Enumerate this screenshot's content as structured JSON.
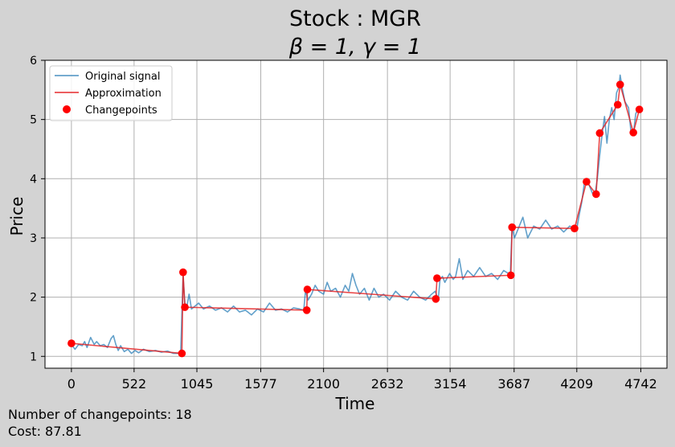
{
  "chart_data": {
    "type": "line",
    "title_line1": "Stock : MGR",
    "title_line2": "β = 1, γ = 1",
    "xlabel": "Time",
    "ylabel": "Price",
    "xlim": [
      -220,
      4960
    ],
    "ylim": [
      0.8,
      6.0
    ],
    "xticks": [
      0,
      522,
      1045,
      1577,
      2100,
      2632,
      3154,
      3687,
      4209,
      4742
    ],
    "yticks": [
      1,
      2,
      3,
      4,
      5,
      6
    ],
    "grid": true,
    "legend_position": "top-left",
    "legend": [
      "Original signal",
      "Approximation",
      "Changepoints"
    ],
    "series": [
      {
        "name": "Original signal",
        "color": "#1f77b4",
        "x": [
          0,
          30,
          60,
          90,
          110,
          130,
          160,
          190,
          210,
          240,
          270,
          300,
          330,
          350,
          370,
          390,
          410,
          440,
          470,
          500,
          530,
          560,
          600,
          650,
          700,
          750,
          800,
          850,
          880,
          910,
          930,
          945,
          960,
          980,
          1000,
          1030,
          1060,
          1100,
          1150,
          1200,
          1250,
          1300,
          1350,
          1400,
          1450,
          1500,
          1550,
          1600,
          1650,
          1700,
          1750,
          1800,
          1850,
          1900,
          1935,
          1950,
          1970,
          2000,
          2030,
          2060,
          2100,
          2130,
          2160,
          2200,
          2240,
          2280,
          2310,
          2340,
          2370,
          2400,
          2440,
          2480,
          2520,
          2560,
          2600,
          2650,
          2700,
          2750,
          2800,
          2850,
          2900,
          2950,
          3000,
          3030,
          3055,
          3070,
          3090,
          3110,
          3150,
          3180,
          3200,
          3230,
          3260,
          3300,
          3350,
          3400,
          3450,
          3500,
          3550,
          3600,
          3640,
          3655,
          3670,
          3690,
          3720,
          3760,
          3800,
          3850,
          3900,
          3950,
          4000,
          4050,
          4100,
          4150,
          4190,
          4210,
          4230,
          4250,
          4270,
          4300,
          4320,
          4340,
          4360,
          4380,
          4400,
          4420,
          4440,
          4460,
          4480,
          4500,
          4520,
          4540,
          4560,
          4570,
          4590,
          4610,
          4640,
          4660,
          4680,
          4700,
          4720
        ],
        "y": [
          1.2,
          1.12,
          1.2,
          1.18,
          1.25,
          1.15,
          1.32,
          1.2,
          1.25,
          1.18,
          1.2,
          1.15,
          1.3,
          1.35,
          1.2,
          1.1,
          1.18,
          1.08,
          1.12,
          1.05,
          1.1,
          1.06,
          1.12,
          1.08,
          1.1,
          1.07,
          1.09,
          1.05,
          1.05,
          1.06,
          2.35,
          1.9,
          1.82,
          2.05,
          1.8,
          1.85,
          1.9,
          1.8,
          1.85,
          1.78,
          1.82,
          1.75,
          1.85,
          1.75,
          1.78,
          1.7,
          1.8,
          1.75,
          1.9,
          1.78,
          1.8,
          1.75,
          1.82,
          1.8,
          1.78,
          2.12,
          1.95,
          2.05,
          2.2,
          2.1,
          2.05,
          2.25,
          2.1,
          2.15,
          2.0,
          2.2,
          2.1,
          2.4,
          2.2,
          2.05,
          2.15,
          1.95,
          2.15,
          2.0,
          2.05,
          1.95,
          2.1,
          2.0,
          1.95,
          2.1,
          2.0,
          1.95,
          2.05,
          2.1,
          1.96,
          2.3,
          2.35,
          2.25,
          2.4,
          2.3,
          2.35,
          2.65,
          2.3,
          2.45,
          2.35,
          2.5,
          2.35,
          2.4,
          2.3,
          2.45,
          2.4,
          2.35,
          3.2,
          3.0,
          3.15,
          3.35,
          3.0,
          3.2,
          3.15,
          3.3,
          3.15,
          3.2,
          3.1,
          3.2,
          3.15,
          3.16,
          3.4,
          3.6,
          3.9,
          3.95,
          3.85,
          3.75,
          3.72,
          4.0,
          4.4,
          4.75,
          5.05,
          4.6,
          5.0,
          5.2,
          5.0,
          5.45,
          5.55,
          5.75,
          5.5,
          5.3,
          5.2,
          4.8,
          4.75,
          5.1,
          5.17
        ]
      },
      {
        "name": "Approximation",
        "color": "#e41a1c",
        "x": [
          0,
          920,
          930,
          945,
          1960,
          1965,
          3035,
          3045,
          3660,
          3670,
          4190,
          4290,
          4370,
          4400,
          4550,
          4570,
          4680,
          4730
        ],
        "y": [
          1.22,
          1.05,
          2.42,
          1.83,
          1.78,
          2.13,
          1.97,
          2.32,
          2.37,
          3.18,
          3.16,
          3.95,
          3.74,
          4.77,
          5.25,
          5.59,
          4.78,
          5.17
        ]
      }
    ],
    "changepoints": {
      "name": "Changepoints",
      "color": "#ff0000",
      "x": [
        0,
        920,
        930,
        945,
        1960,
        1965,
        3035,
        3045,
        3660,
        3670,
        4190,
        4290,
        4370,
        4400,
        4550,
        4570,
        4680,
        4730
      ],
      "y": [
        1.22,
        1.05,
        2.42,
        1.83,
        1.78,
        2.13,
        1.97,
        2.32,
        2.37,
        3.18,
        3.16,
        3.95,
        3.74,
        4.77,
        5.25,
        5.59,
        4.78,
        5.17
      ]
    }
  },
  "footer": {
    "changepoints_label": "Number of changepoints: 18",
    "cost_label": "Cost: 87.81"
  },
  "colors": {
    "background": "#d3d3d3",
    "plot_background": "#ffffff",
    "grid": "#b0b0b0"
  }
}
